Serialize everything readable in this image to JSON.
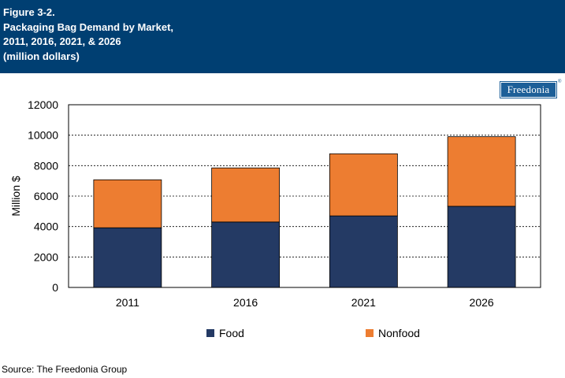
{
  "header": {
    "line1": "Figure 3-2.",
    "line2": "Packaging Bag Demand by Market,",
    "line3": "2011, 2016, 2021, & 2026",
    "line4": "(million dollars)"
  },
  "logo": {
    "text": "Freedonia",
    "mark": "®"
  },
  "source": "Source: The Freedonia Group",
  "colors": {
    "header_bg": "#003f72",
    "food": "#243a64",
    "nonfood": "#ed7d31",
    "logo": "#1d5f98"
  },
  "chart_data": {
    "type": "bar",
    "stacked": true,
    "categories": [
      "2011",
      "2016",
      "2021",
      "2026"
    ],
    "series": [
      {
        "name": "Food",
        "values": [
          3920,
          4300,
          4700,
          5330
        ],
        "color": "#243a64"
      },
      {
        "name": "Nonfood",
        "values": [
          3150,
          3550,
          4080,
          4570
        ],
        "color": "#ed7d31"
      }
    ],
    "ylabel": "Million $",
    "ylim": [
      0,
      12000
    ],
    "yticks": [
      "0",
      "2000",
      "4000",
      "6000",
      "8000",
      "10000",
      "12000"
    ],
    "grid": true,
    "legend_position": "bottom"
  }
}
